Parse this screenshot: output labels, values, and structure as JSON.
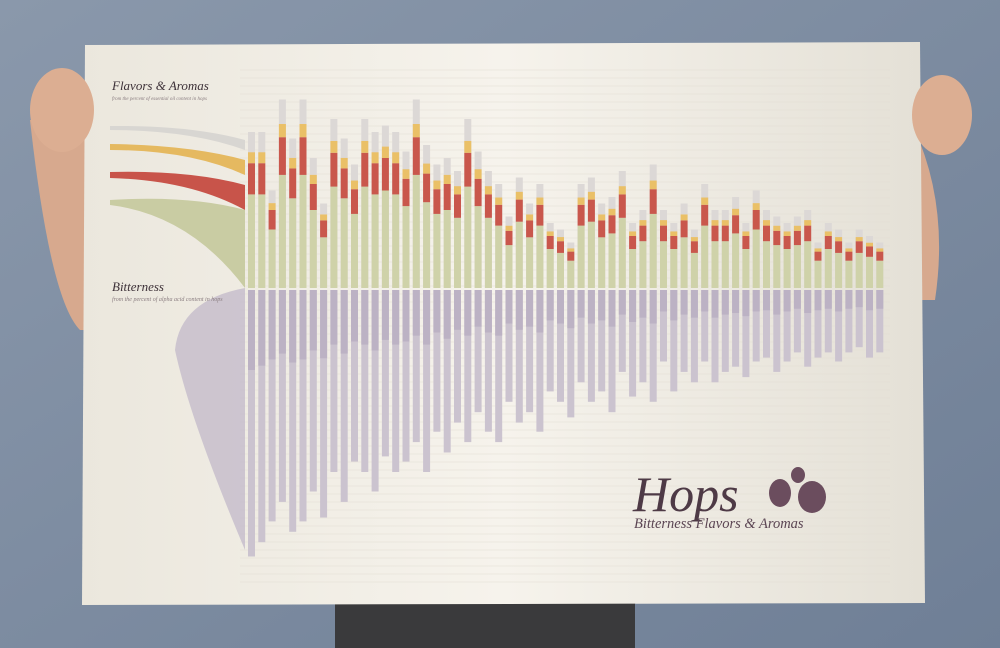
{
  "poster": {
    "flavors_title": "Flavors & Aromas",
    "flavors_subtitle": "from the percent of essential oil content in hops",
    "bitterness_title": "Bitterness",
    "bitterness_subtitle": "from the percent of alpha acid content in hops",
    "logo": "Hops",
    "logo_subtitle": "Bitterness Flavors & Aromas",
    "columns": [
      {
        "oil": 2.4,
        "alpha": 20.5
      },
      {
        "oil": 2.4,
        "alpha": 19.4
      },
      {
        "oil": 1.5,
        "alpha": 17.8
      },
      {
        "oil": 2.9,
        "alpha": 16.3
      },
      {
        "oil": 2.3,
        "alpha": 18.6
      },
      {
        "oil": 2.9,
        "alpha": 17.8
      },
      {
        "oil": 2.0,
        "alpha": 15.5
      },
      {
        "oil": 1.3,
        "alpha": 17.5
      },
      {
        "oil": 2.6,
        "alpha": 14.0
      },
      {
        "oil": 2.3,
        "alpha": 16.3
      },
      {
        "oil": 1.9,
        "alpha": 13.2
      },
      {
        "oil": 2.6,
        "alpha": 14.0
      },
      {
        "oil": 2.4,
        "alpha": 15.5
      },
      {
        "oil": 2.5,
        "alpha": 12.8
      },
      {
        "oil": 2.4,
        "alpha": 14.0
      },
      {
        "oil": 2.1,
        "alpha": 13.2
      },
      {
        "oil": 2.9,
        "alpha": 11.7
      },
      {
        "oil": 2.2,
        "alpha": 14.0
      },
      {
        "oil": 1.9,
        "alpha": 10.9
      },
      {
        "oil": 2.0,
        "alpha": 12.5
      },
      {
        "oil": 1.8,
        "alpha": 10.2
      },
      {
        "oil": 2.6,
        "alpha": 11.7
      },
      {
        "oil": 2.1,
        "alpha": 9.4
      },
      {
        "oil": 1.8,
        "alpha": 10.9
      },
      {
        "oil": 1.6,
        "alpha": 11.7
      },
      {
        "oil": 1.1,
        "alpha": 8.6
      },
      {
        "oil": 1.7,
        "alpha": 10.2
      },
      {
        "oil": 1.3,
        "alpha": 9.4
      },
      {
        "oil": 1.6,
        "alpha": 10.9
      },
      {
        "oil": 1.0,
        "alpha": 7.8
      },
      {
        "oil": 0.9,
        "alpha": 8.6
      },
      {
        "oil": 0.7,
        "alpha": 9.8
      },
      {
        "oil": 1.6,
        "alpha": 7.1
      },
      {
        "oil": 1.7,
        "alpha": 8.6
      },
      {
        "oil": 1.3,
        "alpha": 7.8
      },
      {
        "oil": 1.4,
        "alpha": 9.4
      },
      {
        "oil": 1.8,
        "alpha": 6.3
      },
      {
        "oil": 1.0,
        "alpha": 8.2
      },
      {
        "oil": 1.2,
        "alpha": 7.1
      },
      {
        "oil": 1.9,
        "alpha": 8.6
      },
      {
        "oil": 1.2,
        "alpha": 5.5
      },
      {
        "oil": 1.0,
        "alpha": 7.8
      },
      {
        "oil": 1.3,
        "alpha": 6.3
      },
      {
        "oil": 0.9,
        "alpha": 7.1
      },
      {
        "oil": 1.6,
        "alpha": 5.5
      },
      {
        "oil": 1.2,
        "alpha": 7.1
      },
      {
        "oil": 1.2,
        "alpha": 6.3
      },
      {
        "oil": 1.4,
        "alpha": 5.9
      },
      {
        "oil": 1.0,
        "alpha": 6.7
      },
      {
        "oil": 1.5,
        "alpha": 5.5
      },
      {
        "oil": 1.2,
        "alpha": 5.2
      },
      {
        "oil": 1.1,
        "alpha": 6.3
      },
      {
        "oil": 1.0,
        "alpha": 5.5
      },
      {
        "oil": 1.1,
        "alpha": 4.8
      },
      {
        "oil": 1.2,
        "alpha": 5.9
      },
      {
        "oil": 0.7,
        "alpha": 5.2
      },
      {
        "oil": 1.0,
        "alpha": 4.8
      },
      {
        "oil": 0.9,
        "alpha": 5.5
      },
      {
        "oil": 0.7,
        "alpha": 4.8
      },
      {
        "oil": 0.9,
        "alpha": 4.4
      },
      {
        "oil": 0.8,
        "alpha": 5.2
      },
      {
        "oil": 0.7,
        "alpha": 4.8
      }
    ]
  }
}
